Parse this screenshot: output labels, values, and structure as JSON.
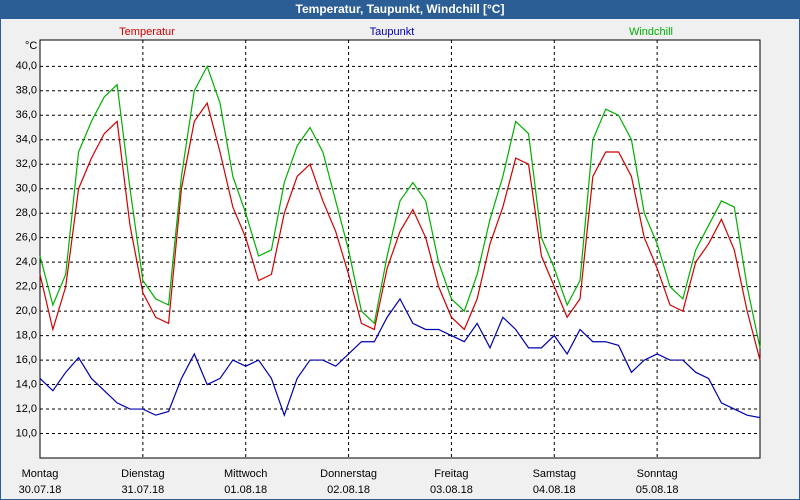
{
  "chart_data": {
    "type": "line",
    "title": "Temperatur, Taupunkt, Windchill [°C]",
    "y_unit": "°C",
    "xlim": [
      0,
      7
    ],
    "ylim": [
      8,
      42.15
    ],
    "grid": true,
    "xticks": [
      {
        "value": 0,
        "label": "Montag"
      },
      {
        "value": 1,
        "label": "Dienstag"
      },
      {
        "value": 2,
        "label": "Mittwoch"
      },
      {
        "value": 3,
        "label": "Donnerstag"
      },
      {
        "value": 4,
        "label": "Freitag"
      },
      {
        "value": 5,
        "label": "Samstag"
      },
      {
        "value": 6,
        "label": "Sonntag"
      }
    ],
    "xtick_dates": [
      "30.07.18",
      "31.07.18",
      "01.08.18",
      "02.08.18",
      "03.08.18",
      "04.08.18",
      "05.08.18"
    ],
    "yticks": [
      {
        "value": 10,
        "label": "10,0"
      },
      {
        "value": 12,
        "label": "12,0"
      },
      {
        "value": 14,
        "label": "14,0"
      },
      {
        "value": 16,
        "label": "16,0"
      },
      {
        "value": 18,
        "label": "18,0"
      },
      {
        "value": 20,
        "label": "20,0"
      },
      {
        "value": 22,
        "label": "22,0"
      },
      {
        "value": 24,
        "label": "24,0"
      },
      {
        "value": 26,
        "label": "26,0"
      },
      {
        "value": 28,
        "label": "28,0"
      },
      {
        "value": 30,
        "label": "30,0"
      },
      {
        "value": 32,
        "label": "32,0"
      },
      {
        "value": 34,
        "label": "34,0"
      },
      {
        "value": 36,
        "label": "36,0"
      },
      {
        "value": 38,
        "label": "38,0"
      },
      {
        "value": 40,
        "label": "40,0"
      }
    ],
    "x": [
      0,
      0.125,
      0.25,
      0.375,
      0.5,
      0.625,
      0.75,
      0.875,
      1,
      1.125,
      1.25,
      1.375,
      1.5,
      1.625,
      1.75,
      1.875,
      2,
      2.125,
      2.25,
      2.375,
      2.5,
      2.625,
      2.75,
      2.875,
      3,
      3.125,
      3.25,
      3.375,
      3.5,
      3.625,
      3.75,
      3.875,
      4,
      4.125,
      4.25,
      4.375,
      4.5,
      4.625,
      4.75,
      4.875,
      5,
      5.125,
      5.25,
      5.375,
      5.5,
      5.625,
      5.75,
      5.875,
      6,
      6.125,
      6.25,
      6.375,
      6.5,
      6.625,
      6.75,
      6.875,
      7
    ],
    "series": [
      {
        "name": "Temperatur",
        "color": "#d00000",
        "values": [
          23,
          18.5,
          22,
          30,
          32.5,
          34.5,
          35.5,
          27,
          21.5,
          19.5,
          19,
          30,
          35.5,
          37,
          33,
          28.5,
          26,
          22.5,
          23,
          28,
          31,
          32,
          29,
          26.5,
          23,
          19,
          18.5,
          23.5,
          26.5,
          28.3,
          26,
          22,
          19.5,
          18.5,
          21,
          25.5,
          28.5,
          32.5,
          32,
          24.5,
          22,
          19.5,
          21,
          31,
          33,
          33,
          31,
          26,
          23.5,
          20.5,
          20,
          24,
          25.5,
          27.5,
          25,
          20,
          16
        ]
      },
      {
        "name": "Taupunkt",
        "color": "#0000b0",
        "values": [
          14.5,
          13.5,
          15,
          16.2,
          14.5,
          13.5,
          12.5,
          12,
          12,
          11.5,
          11.8,
          14.5,
          16.5,
          14,
          14.5,
          16,
          15.5,
          16,
          14.5,
          11.5,
          14.5,
          16,
          16,
          15.5,
          16.5,
          17.5,
          17.5,
          19.5,
          21,
          19,
          18.5,
          18.5,
          18,
          17.5,
          19,
          17,
          19.5,
          18.5,
          17,
          17,
          18,
          16.5,
          18.5,
          17.5,
          17.5,
          17.2,
          15,
          16,
          16.5,
          16,
          16,
          15,
          14.5,
          12.5,
          12,
          11.5,
          11.3
        ]
      },
      {
        "name": "Windchill",
        "color": "#00b000",
        "values": [
          24.5,
          20.5,
          23,
          33,
          35.5,
          37.5,
          38.5,
          30,
          22.5,
          21,
          20.5,
          31,
          38,
          40,
          37,
          31,
          28,
          24.5,
          25,
          30.5,
          33.5,
          35,
          33,
          29,
          25,
          20,
          19,
          24.5,
          29,
          30.5,
          29,
          24,
          21,
          20,
          23,
          27.5,
          31,
          35.5,
          34.5,
          26,
          23.5,
          20.5,
          22.5,
          34,
          36.5,
          36,
          34,
          28,
          25.5,
          22,
          21,
          25,
          27,
          29,
          28.5,
          22,
          17
        ]
      }
    ]
  }
}
